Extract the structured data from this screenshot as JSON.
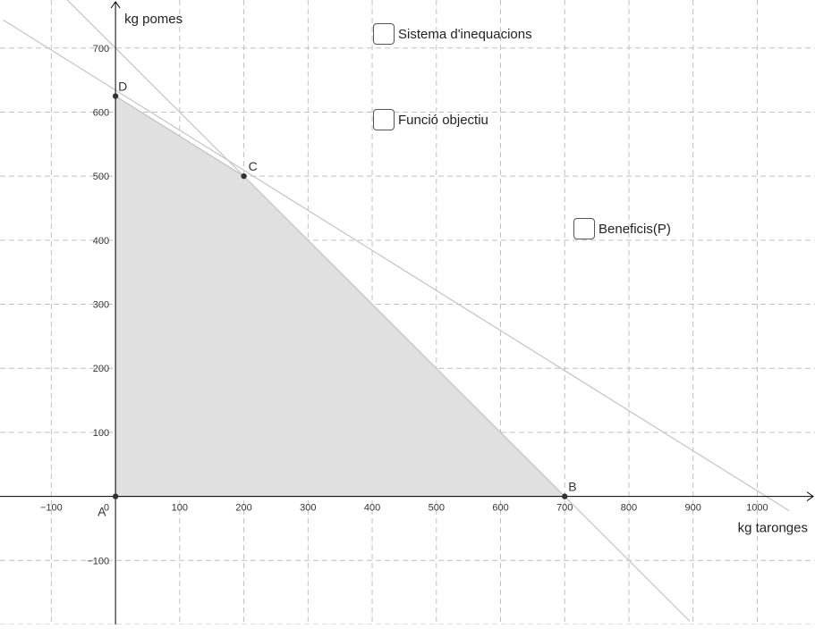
{
  "chart_data": {
    "type": "line",
    "xlabel": "kg taronges",
    "ylabel": "kg pomes",
    "xlim": [
      -180,
      1090
    ],
    "ylim": [
      -200,
      775
    ],
    "x_ticks": [
      -100,
      0,
      100,
      200,
      300,
      400,
      500,
      600,
      700,
      800,
      900,
      1000
    ],
    "y_ticks": [
      -100,
      100,
      200,
      300,
      400,
      500,
      600,
      700
    ],
    "x_tick_labels": [
      "−100",
      "0",
      "100",
      "200",
      "300",
      "400",
      "500",
      "600",
      "700",
      "800",
      "900",
      "1000"
    ],
    "y_tick_labels": [
      "−100",
      "100",
      "200",
      "300",
      "400",
      "500",
      "600",
      "700"
    ],
    "grid": true,
    "lines": [
      {
        "from": [
          -185,
          885
        ],
        "to": [
          895,
          -195
        ]
      },
      {
        "from": [
          -175,
          743.75
        ],
        "to": [
          1050,
          -22.5
        ]
      }
    ],
    "feasible_region": [
      [
        0,
        0
      ],
      [
        700,
        0
      ],
      [
        200,
        500
      ],
      [
        0,
        625
      ]
    ],
    "points": [
      {
        "label": "A",
        "x": 0,
        "y": 0
      },
      {
        "label": "B",
        "x": 700,
        "y": 0
      },
      {
        "label": "C",
        "x": 200,
        "y": 500
      },
      {
        "label": "D",
        "x": 0,
        "y": 625
      }
    ],
    "colors": {
      "region": "#e0e0e0",
      "boundary": "#b8b8b8",
      "line": "#c4c4c4",
      "grid": "#c0c0c0",
      "axis": "#000000",
      "point": "#333333"
    }
  },
  "checkboxes": [
    {
      "label": "Sistema d'inequacions",
      "checked": false
    },
    {
      "label": "Funció objectiu",
      "checked": false
    },
    {
      "label": "Beneficis(P)",
      "checked": false
    }
  ]
}
